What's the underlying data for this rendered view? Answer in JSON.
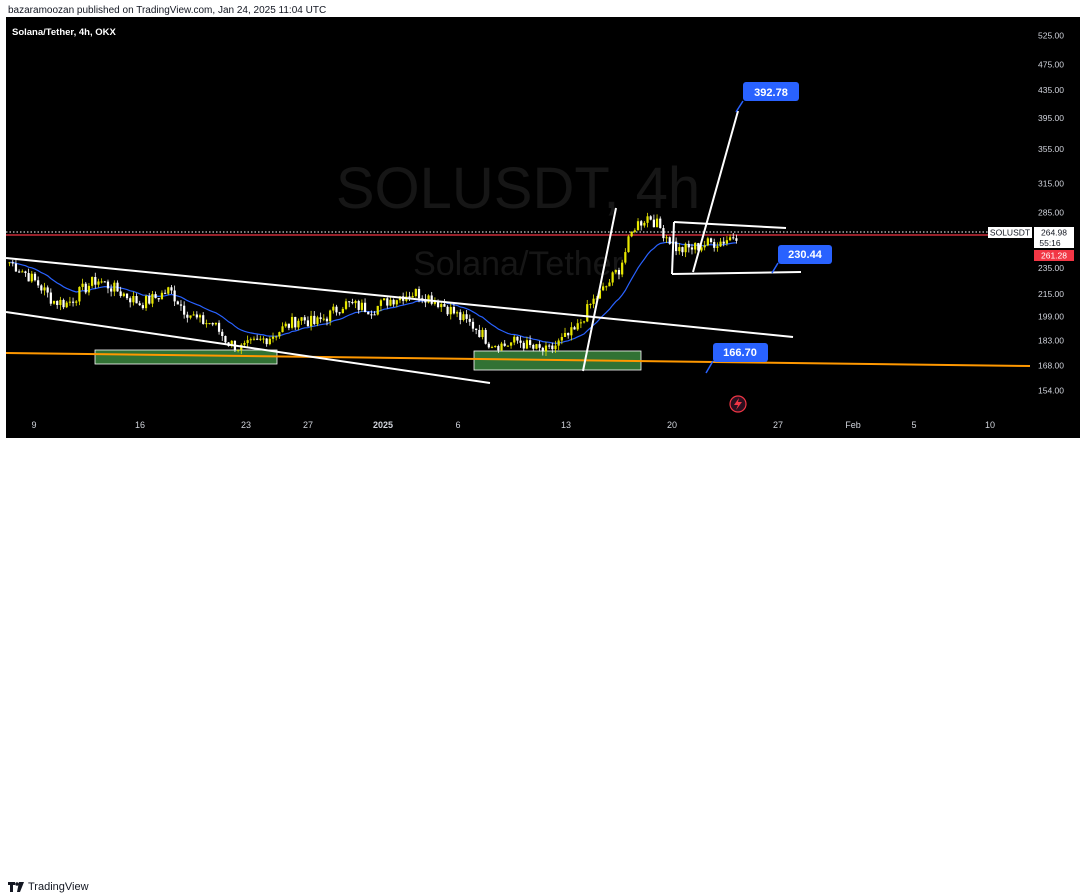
{
  "publisher_line": "bazaramoozan published on TradingView.com, Jan 24, 2025 11:04 UTC",
  "symbol_line": "Solana/Tether, 4h, OKX",
  "watermark": {
    "symbol": "SOLUSDT, 4h",
    "name": "Solana/Tether"
  },
  "branding": "TradingView",
  "colors": {
    "background": "#000000",
    "bull": "#e8e800",
    "bear": "#ffffff",
    "ma": "#2962ff",
    "support_line": "#ff9800",
    "price_line": "#f23645",
    "zone": "#4caf50",
    "label": "#2962ff"
  },
  "chart_data": {
    "type": "candlestick",
    "title": "Solana/Tether, 4h, OKX",
    "y_scale": "log",
    "y_range": [
      142,
      560
    ],
    "y_ticks": [
      "525.00",
      "475.00",
      "435.00",
      "395.00",
      "355.00",
      "315.00",
      "285.00",
      "264.98",
      "235.00",
      "215.00",
      "199.00",
      "183.00",
      "168.00",
      "154.00"
    ],
    "x_ticks": [
      "9",
      "16",
      "23",
      "27",
      "2025",
      "6",
      "13",
      "20",
      "27",
      "Feb",
      "5",
      "10"
    ],
    "price_markers": {
      "last_symbol": "SOLUSDT",
      "last_price": "264.98",
      "countdown": "55:16",
      "red_price": "261.28"
    },
    "annotations": [
      "392.78",
      "230.44",
      "166.70"
    ],
    "series": [
      {
        "name": "price_path_close",
        "values": [
          240,
          232,
          222,
          210,
          208,
          218,
          226,
          220,
          214,
          208,
          212,
          218,
          204,
          196,
          194,
          182,
          178,
          182,
          186,
          192,
          198,
          194,
          200,
          208,
          206,
          204,
          210,
          214,
          216,
          212,
          206,
          198,
          192,
          182,
          180,
          183,
          178,
          176,
          183,
          190,
          208,
          220,
          236,
          272,
          282,
          266,
          250,
          252,
          256,
          258,
          264
        ]
      }
    ]
  }
}
